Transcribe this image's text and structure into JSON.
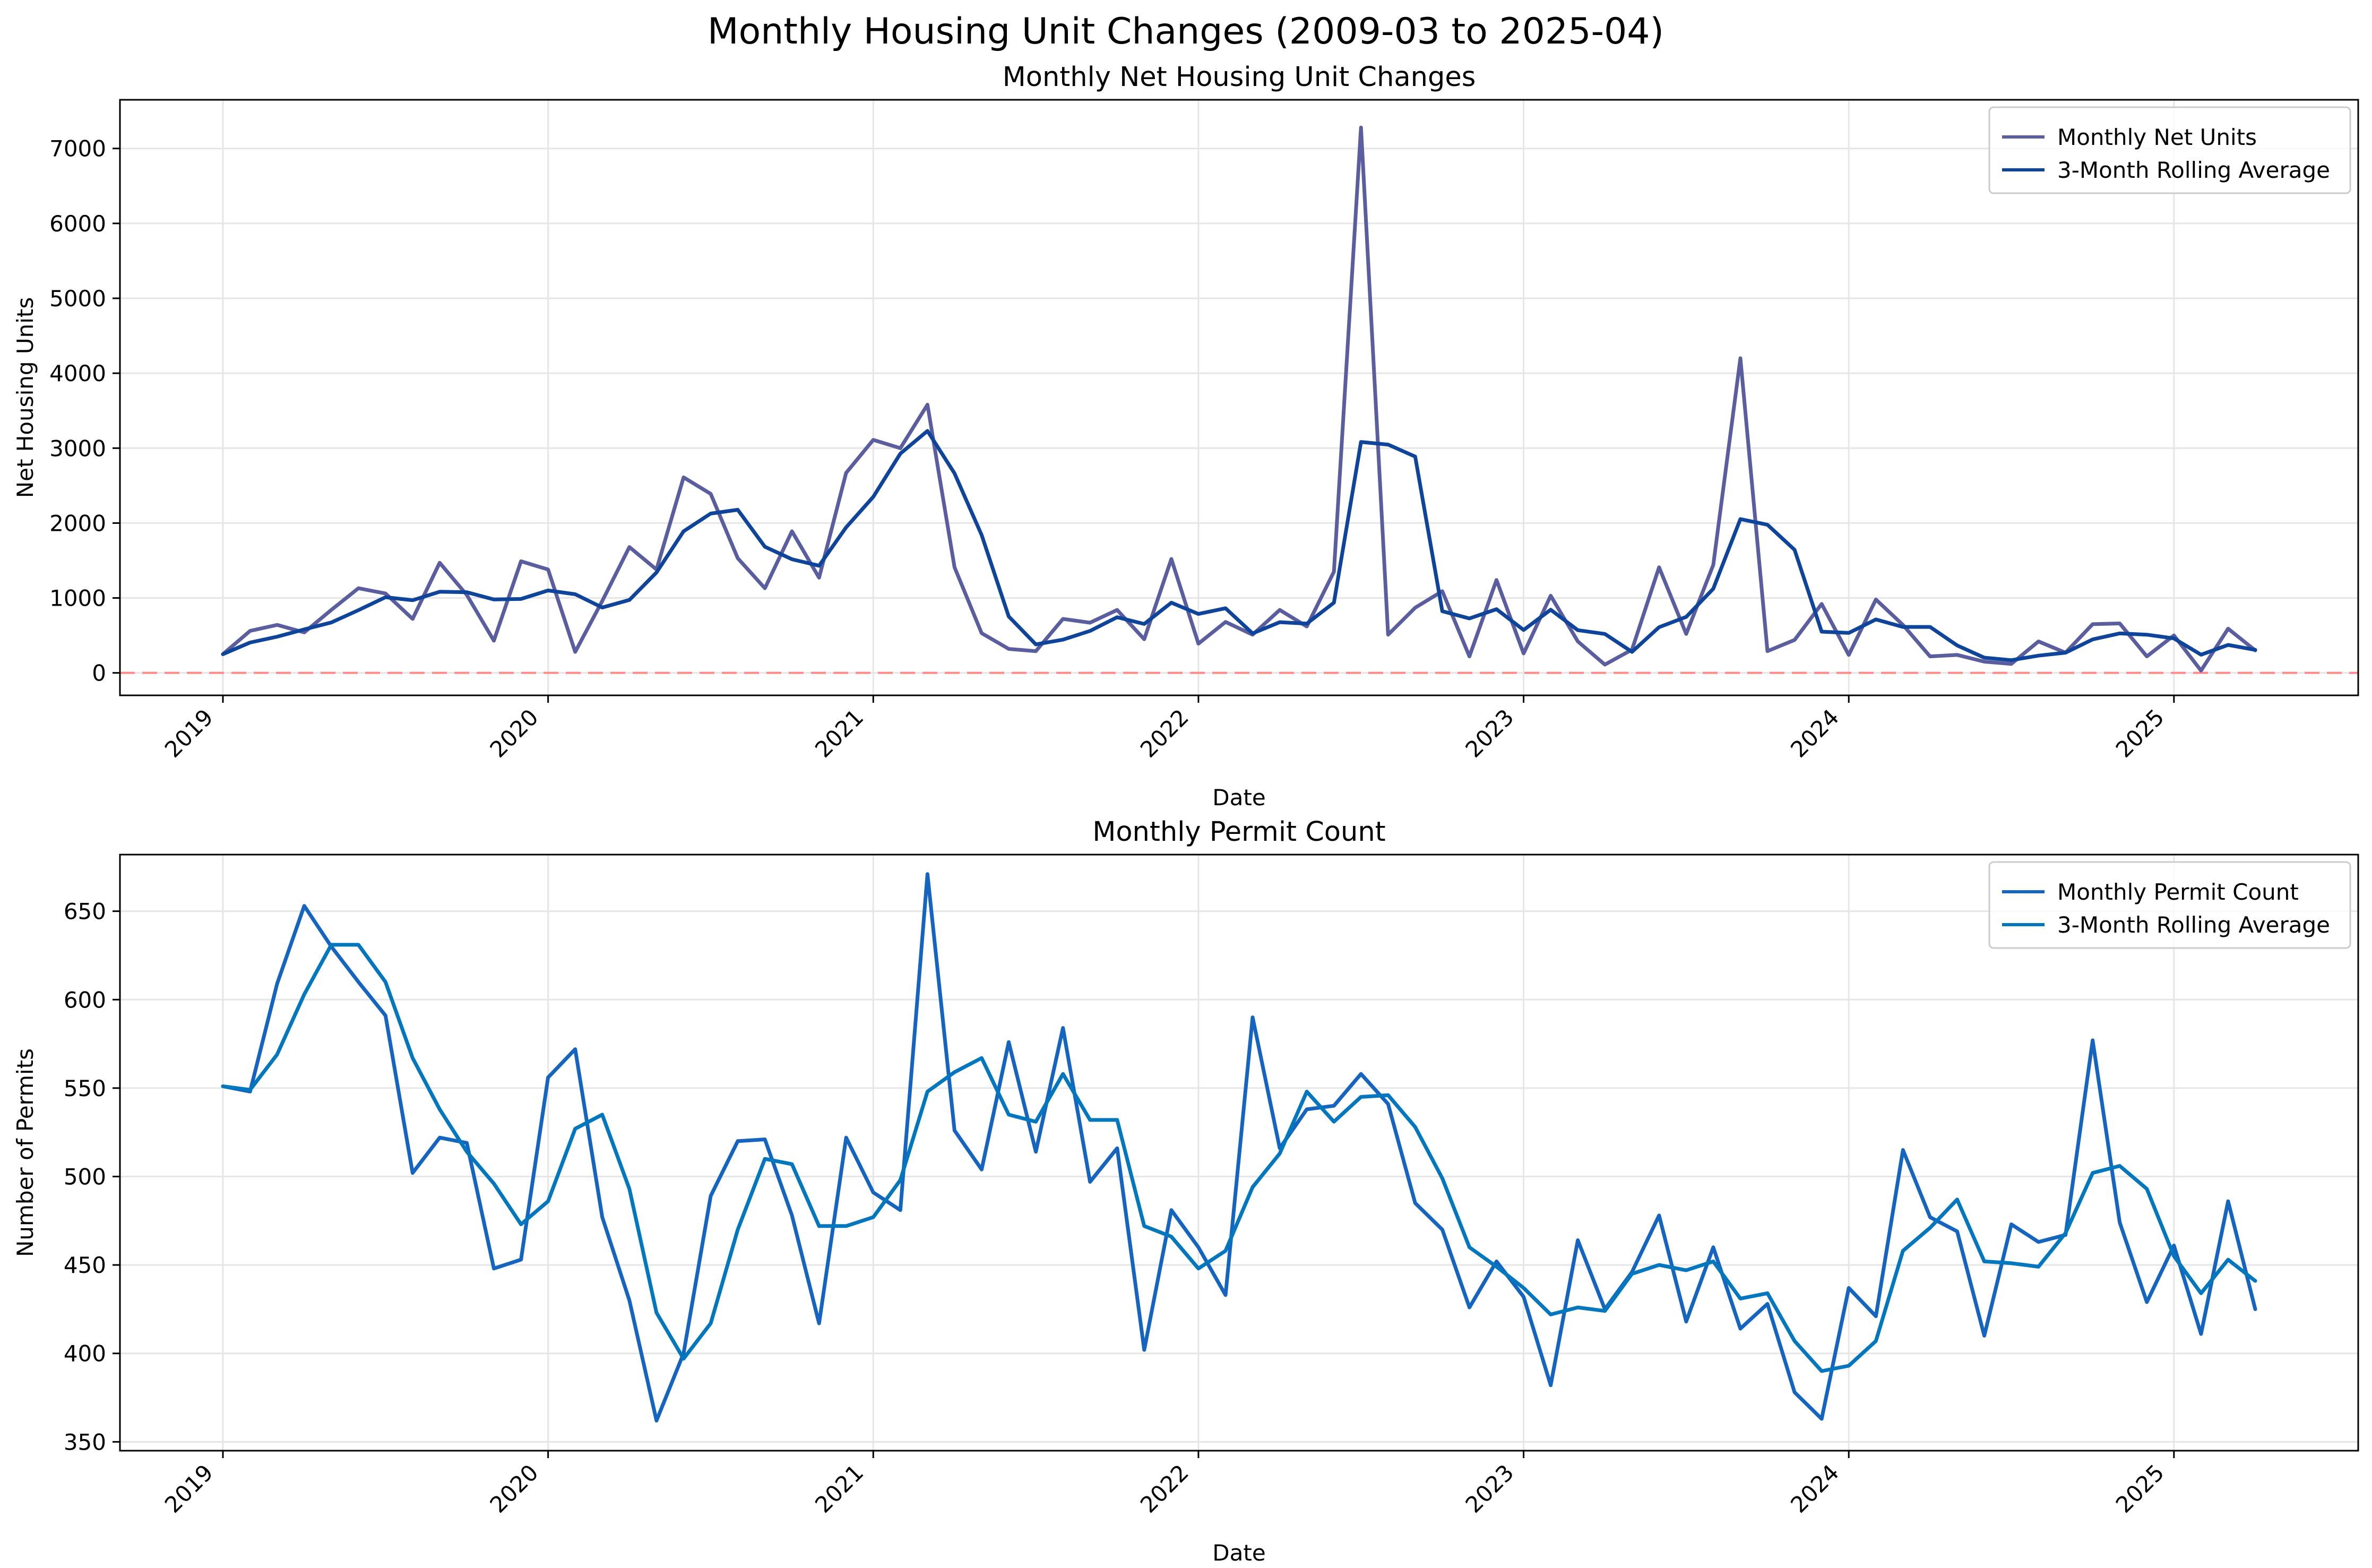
{
  "suptitle": "Monthly Housing Unit Changes (2009-03 to 2025-04)",
  "colors": {
    "net_units": "#5a5e9e",
    "net_rolling": "#0f449b",
    "permit_count": "#1565c0",
    "permit_rolling": "#0277bd",
    "zero_line": "#ff8a8a",
    "grid": "#e6e6e6"
  },
  "chart_data": [
    {
      "type": "line",
      "title": "Monthly Net Housing Unit Changes",
      "xlabel": "Date",
      "ylabel": "Net Housing Units",
      "x_start": "2019-01",
      "x_end": "2025-04",
      "x_ticks": [
        "2019",
        "2020",
        "2021",
        "2022",
        "2023",
        "2024",
        "2025"
      ],
      "ylim": [
        -300,
        7650
      ],
      "y_ticks": [
        0,
        1000,
        2000,
        3000,
        4000,
        5000,
        6000,
        7000
      ],
      "grid": true,
      "legend": "top-right",
      "reference_line": 0,
      "series": [
        {
          "name": "Monthly Net Units",
          "values": [
            250,
            560,
            640,
            540,
            840,
            1130,
            1060,
            720,
            1470,
            1040,
            430,
            1490,
            1380,
            280,
            960,
            1680,
            1380,
            2610,
            2390,
            1530,
            1130,
            1890,
            1270,
            2670,
            3110,
            3000,
            3580,
            1410,
            530,
            320,
            290,
            720,
            670,
            840,
            450,
            1520,
            390,
            680,
            510,
            840,
            620,
            1350,
            7280,
            510,
            870,
            1090,
            220,
            1240,
            260,
            1030,
            420,
            110,
            310,
            1410,
            520,
            1440,
            4200,
            290,
            440,
            920,
            240,
            980,
            640,
            220,
            240,
            150,
            120,
            420,
            270,
            650,
            660,
            220,
            500,
            30,
            590,
            300
          ]
        },
        {
          "name": "3-Month Rolling Average",
          "values": [
            250,
            405,
            483,
            580,
            673,
            837,
            1010,
            970,
            1083,
            1077,
            980,
            987,
            1100,
            1050,
            873,
            973,
            1340,
            1890,
            2127,
            2177,
            1683,
            1517,
            1430,
            1943,
            2350,
            2927,
            3230,
            2663,
            1840,
            753,
            380,
            443,
            560,
            743,
            653,
            937,
            787,
            863,
            527,
            677,
            657,
            937,
            3083,
            3047,
            2887,
            823,
            727,
            850,
            573,
            843,
            570,
            520,
            280,
            610,
            747,
            1123,
            2053,
            1977,
            1643,
            550,
            533,
            713,
            613,
            613,
            367,
            203,
            170,
            230,
            270,
            447,
            527,
            510,
            460,
            243,
            373,
            307
          ]
        }
      ]
    },
    {
      "type": "line",
      "title": "Monthly Permit Count",
      "xlabel": "Date",
      "ylabel": "Number of Permits",
      "x_start": "2019-01",
      "x_end": "2025-04",
      "x_ticks": [
        "2019",
        "2020",
        "2021",
        "2022",
        "2023",
        "2024",
        "2025"
      ],
      "ylim": [
        345,
        682
      ],
      "y_ticks": [
        350,
        400,
        450,
        500,
        550,
        600,
        650
      ],
      "grid": true,
      "legend": "top-right",
      "series": [
        {
          "name": "Monthly Permit Count",
          "values": [
            551,
            548,
            609,
            653,
            630,
            610,
            591,
            502,
            522,
            519,
            448,
            453,
            556,
            572,
            477,
            430,
            362,
            400,
            489,
            520,
            521,
            478,
            417,
            522,
            491,
            481,
            671,
            526,
            504,
            576,
            514,
            584,
            497,
            516,
            402,
            481,
            460,
            433,
            590,
            516,
            538,
            540,
            558,
            541,
            485,
            470,
            426,
            452,
            432,
            382,
            464,
            425,
            446,
            478,
            418,
            460,
            414,
            428,
            378,
            363,
            437,
            421,
            515,
            477,
            469,
            410,
            473,
            463,
            467,
            577,
            474,
            429,
            461,
            411,
            486,
            425
          ]
        },
        {
          "name": "3-Month Rolling Average",
          "values": [
            551,
            549,
            569,
            603,
            631,
            631,
            610,
            567,
            538,
            514,
            496,
            473,
            486,
            527,
            535,
            493,
            423,
            397,
            417,
            470,
            510,
            507,
            472,
            472,
            477,
            498,
            548,
            559,
            567,
            535,
            531,
            558,
            532,
            532,
            472,
            466,
            448,
            458,
            494,
            513,
            548,
            531,
            545,
            546,
            528,
            499,
            460,
            449,
            437,
            422,
            426,
            424,
            445,
            450,
            447,
            452,
            431,
            434,
            407,
            390,
            393,
            407,
            458,
            471,
            487,
            452,
            451,
            449,
            468,
            502,
            506,
            493,
            455,
            434,
            453,
            441
          ]
        }
      ]
    }
  ]
}
